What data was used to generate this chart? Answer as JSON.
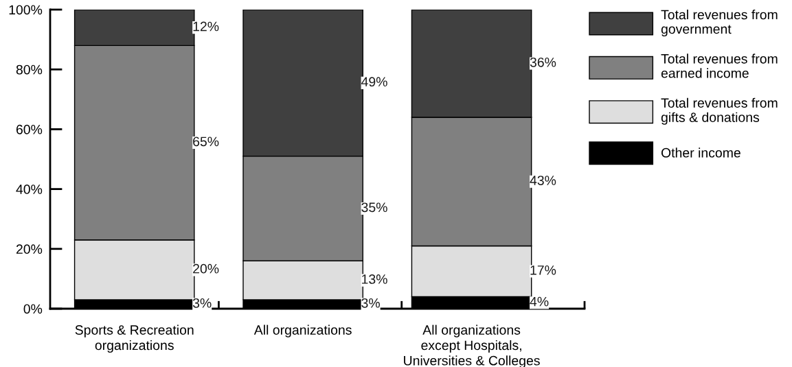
{
  "chart_data": {
    "type": "bar",
    "stacked": true,
    "categories": [
      "Sports & Recreation\norganizations",
      "All organizations",
      "All organizations\nexcept Hospitals,\nUniversities & Colleges"
    ],
    "series": [
      {
        "name": "Other income",
        "color": "#000000",
        "values": [
          3,
          3,
          4
        ],
        "value_labels": [
          "3%",
          "3%",
          "4%"
        ]
      },
      {
        "name": "Total revenues from\ngifts & donations",
        "color": "#dedede",
        "values": [
          20,
          13,
          17
        ],
        "value_labels": [
          "20%",
          "13%",
          "17%"
        ]
      },
      {
        "name": "Total revenues from\nearned income",
        "color": "#808080",
        "values": [
          65,
          35,
          43
        ],
        "value_labels": [
          "65%",
          "35%",
          "43%"
        ]
      },
      {
        "name": "Total revenues from\ngovernment",
        "color": "#404040",
        "values": [
          12,
          49,
          36
        ],
        "value_labels": [
          "12%",
          "49%",
          "36%"
        ]
      }
    ],
    "ylim": [
      0,
      100
    ],
    "yticks": [
      {
        "value": 0,
        "label": "0%"
      },
      {
        "value": 20,
        "label": "20%"
      },
      {
        "value": 40,
        "label": "40%"
      },
      {
        "value": 60,
        "label": "60%"
      },
      {
        "value": 80,
        "label": "80%"
      },
      {
        "value": 100,
        "label": "100%"
      }
    ],
    "grid": false,
    "legend": "top right"
  }
}
